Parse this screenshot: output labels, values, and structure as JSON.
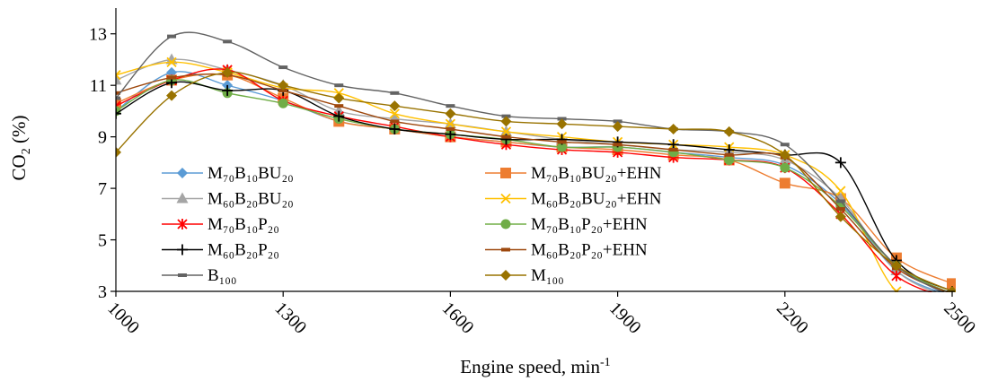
{
  "chart_data": {
    "type": "line",
    "xlabel": "Engine speed, min",
    "xlabel_sup": "-1",
    "ylabel": "CO",
    "ylabel_sub": "2",
    "ylabel_unit": " (%)",
    "xlim": [
      1000,
      2500
    ],
    "ylim": [
      3,
      14
    ],
    "x_ticks": [
      1000,
      1300,
      1600,
      1900,
      2200,
      2500
    ],
    "y_ticks": [
      3,
      5,
      7,
      9,
      11,
      13
    ],
    "x_tick_labels": [
      "1000",
      "1300",
      "1600",
      "1900",
      "2200",
      "2500"
    ],
    "y_tick_labels": [
      "3",
      "5",
      "7",
      "9",
      "11",
      "13"
    ],
    "x": [
      1000,
      1100,
      1200,
      1300,
      1400,
      1500,
      1600,
      1700,
      1800,
      1900,
      2000,
      2100,
      2200,
      2300,
      2400,
      2500
    ],
    "legend": "inside-lower-left, two columns",
    "series": [
      {
        "name": "M₇₀B₁₀BU₂₀",
        "color": "#5b9bd5",
        "marker": "diamond",
        "values": [
          10.0,
          11.5,
          11.0,
          10.4,
          9.6,
          9.3,
          9.0,
          8.8,
          8.6,
          8.6,
          8.4,
          8.2,
          7.9,
          6.4,
          3.8,
          2.8
        ]
      },
      {
        "name": "M₇₀B₁₀BU₂₀+EHN",
        "color": "#ed7d31",
        "marker": "square",
        "values": [
          10.3,
          11.2,
          11.4,
          10.5,
          9.6,
          9.3,
          9.0,
          8.8,
          8.6,
          8.5,
          8.3,
          8.1,
          7.2,
          6.6,
          4.3,
          3.3
        ]
      },
      {
        "name": "M₆₀B₂₀BU₂₀",
        "color": "#a5a5a5",
        "marker": "triangle",
        "values": [
          11.2,
          12.0,
          11.6,
          11.0,
          10.0,
          9.7,
          9.5,
          9.2,
          8.9,
          8.7,
          8.5,
          8.4,
          8.1,
          6.6,
          3.8,
          2.7
        ]
      },
      {
        "name": "M₆₀B₂₀BU₂₀+EHN",
        "color": "#ffc000",
        "marker": "x",
        "values": [
          11.4,
          11.9,
          11.5,
          10.9,
          10.7,
          9.9,
          9.5,
          9.2,
          9.0,
          8.8,
          8.7,
          8.6,
          8.3,
          6.9,
          3.0,
          2.8
        ]
      },
      {
        "name": "M₇₀B₁₀P₂₀",
        "color": "#ff0000",
        "marker": "asterisk",
        "values": [
          10.2,
          11.2,
          11.6,
          10.4,
          9.8,
          9.4,
          9.0,
          8.7,
          8.5,
          8.4,
          8.2,
          8.1,
          7.8,
          6.0,
          3.6,
          2.7
        ]
      },
      {
        "name": "M₇₀B₁₀P₂₀+EHN",
        "color": "#70ad47",
        "marker": "circle",
        "values": [
          10.0,
          11.2,
          10.7,
          10.3,
          9.7,
          9.3,
          9.1,
          8.9,
          8.6,
          8.6,
          8.4,
          8.1,
          7.8,
          6.3,
          4.0,
          2.9
        ]
      },
      {
        "name": "M₆₀B₂₀P₂₀",
        "color": "#000000",
        "marker": "plus",
        "values": [
          9.9,
          11.1,
          10.8,
          10.8,
          9.8,
          9.3,
          9.1,
          8.9,
          8.9,
          8.8,
          8.7,
          8.5,
          8.3,
          8.0,
          4.2,
          3.0
        ]
      },
      {
        "name": "M₆₀B₂₀P₂₀+EHN",
        "color": "#9e480e",
        "marker": "dash",
        "values": [
          10.7,
          11.3,
          11.4,
          10.8,
          10.2,
          9.6,
          9.3,
          9.0,
          8.8,
          8.7,
          8.5,
          8.3,
          8.2,
          6.2,
          3.9,
          2.9
        ]
      },
      {
        "name": "B₁₀₀",
        "color": "#636363",
        "marker": "dash",
        "values": [
          10.5,
          12.9,
          12.7,
          11.7,
          11.0,
          10.7,
          10.2,
          9.8,
          9.7,
          9.6,
          9.3,
          9.2,
          8.7,
          6.5,
          4.0,
          2.8
        ]
      },
      {
        "name": "M₁₀₀",
        "color": "#997300",
        "marker": "diamond",
        "values": [
          8.4,
          10.6,
          11.5,
          11.0,
          10.5,
          10.2,
          9.9,
          9.6,
          9.5,
          9.4,
          9.3,
          9.2,
          8.3,
          5.9,
          4.0,
          3.0
        ]
      }
    ]
  }
}
